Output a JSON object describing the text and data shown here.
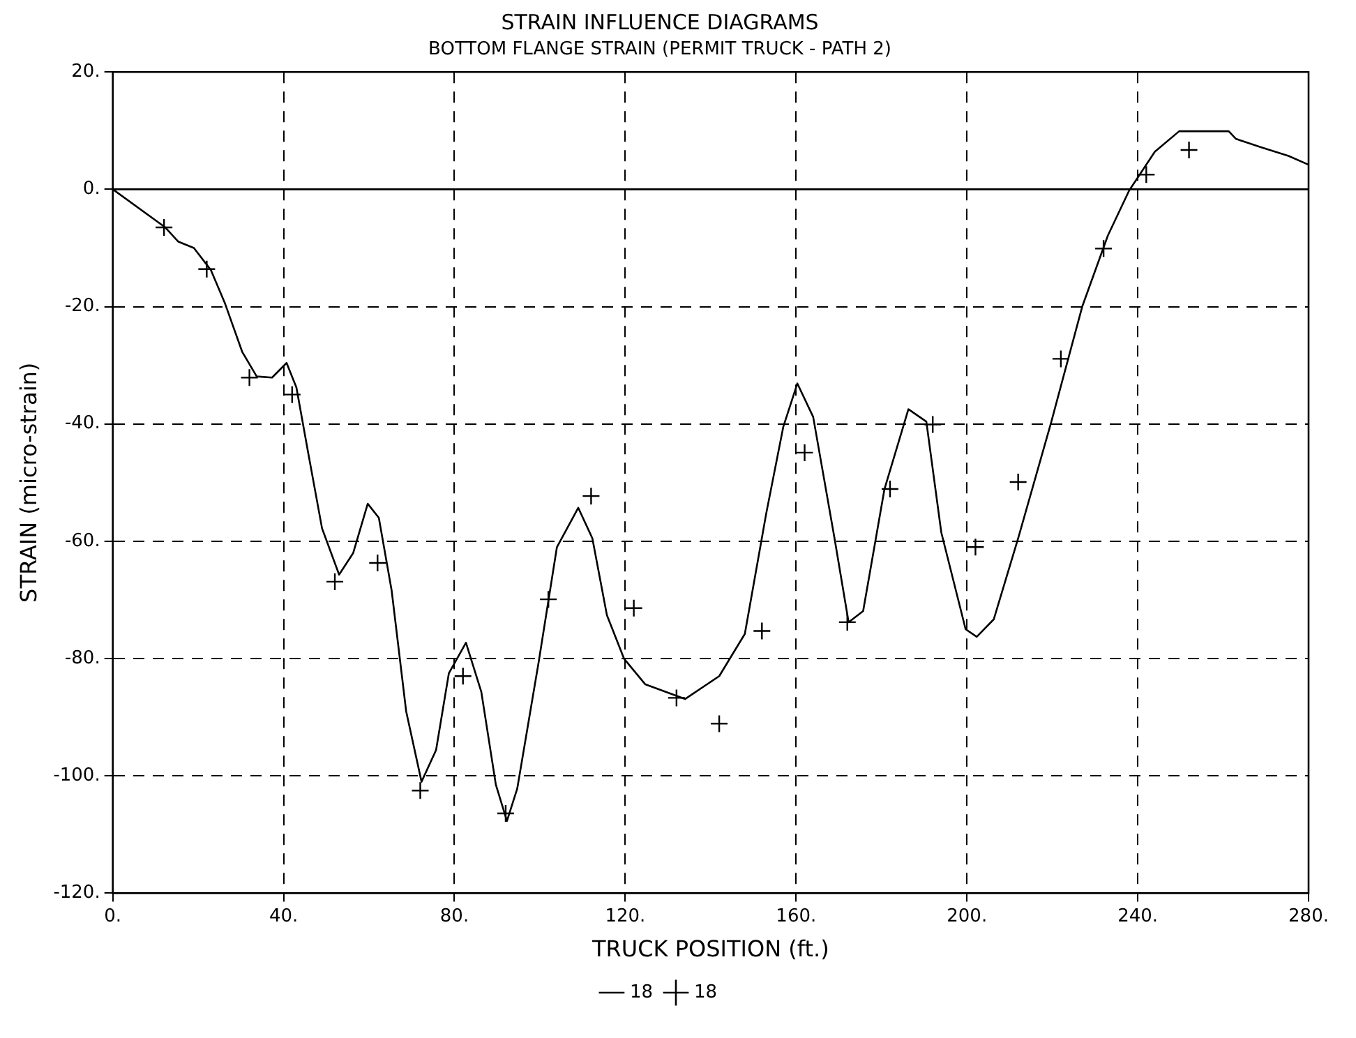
{
  "chart_data": {
    "type": "line",
    "title": "STRAIN INFLUENCE DIAGRAMS",
    "subtitle": "BOTTOM FLANGE STRAIN (PERMIT TRUCK - PATH 2)",
    "xlabel": "TRUCK POSITION (ft.)",
    "ylabel": "STRAIN (micro-strain)",
    "xlim": [
      0,
      280
    ],
    "xticks": [
      {
        "value": 0,
        "label": "0."
      },
      {
        "value": 40,
        "label": "40."
      },
      {
        "value": 80,
        "label": "80."
      },
      {
        "value": 120,
        "label": "120."
      },
      {
        "value": 160,
        "label": "160."
      },
      {
        "value": 200,
        "label": "200."
      },
      {
        "value": 240,
        "label": "240."
      },
      {
        "value": 280,
        "label": "280."
      }
    ],
    "ylim": [
      -120,
      20
    ],
    "yticks": [
      {
        "value": -120,
        "label": "-120."
      },
      {
        "value": -100,
        "label": "-100."
      },
      {
        "value": -80,
        "label": "-80."
      },
      {
        "value": -60,
        "label": "-60."
      },
      {
        "value": -40,
        "label": "-40."
      },
      {
        "value": -20,
        "label": "-20."
      },
      {
        "value": 0,
        "label": "0."
      },
      {
        "value": 20,
        "label": "20."
      }
    ],
    "grid": true,
    "legend": "bottom",
    "ref_lines": [
      {
        "axis": "y",
        "value": 0,
        "color": "#000000",
        "line_style": "solid"
      }
    ],
    "series": [
      {
        "name": "18",
        "color": "#000000",
        "marker": "none",
        "x": [
          0,
          12.3,
          15.3,
          19,
          23,
          26.3,
          30.3,
          33.7,
          37.3,
          40.7,
          43,
          45.7,
          49,
          53,
          56.3,
          59.7,
          62.3,
          65.3,
          68.7,
          72.3,
          75.7,
          78.7,
          82.7,
          86.3,
          89.7,
          92.3,
          94.7,
          99.7,
          104,
          109,
          112.3,
          115.7,
          119.7,
          124.7,
          134,
          142,
          148,
          153,
          157,
          160.3,
          164,
          169,
          172.3,
          175.7,
          180.7,
          186.3,
          190.5,
          194,
          199.7,
          202.3,
          206.3,
          212,
          219.7,
          227,
          233,
          238,
          244,
          249.7,
          261.3,
          263,
          268.7,
          275.3,
          280
        ],
        "values": [
          0,
          -6.5,
          -8.9,
          -10,
          -13.8,
          -19.5,
          -27.7,
          -31.9,
          -32.1,
          -29.6,
          -33.8,
          -44.7,
          -57.8,
          -65.7,
          -62,
          -53.6,
          -56,
          -68.4,
          -89,
          -101,
          -95.6,
          -82.5,
          -77.3,
          -85.7,
          -101.5,
          -107.7,
          -102.2,
          -80.7,
          -61,
          -54.3,
          -59.5,
          -72.6,
          -80,
          -84.4,
          -86.9,
          -83,
          -75.8,
          -55.3,
          -40.5,
          -33.1,
          -38.8,
          -59.5,
          -73.8,
          -71.9,
          -51.1,
          -37.5,
          -39.6,
          -58.5,
          -75,
          -76.3,
          -73.3,
          -59.5,
          -39.8,
          -20,
          -7.9,
          -0.2,
          6.4,
          9.9,
          9.9,
          8.6,
          7.2,
          5.7,
          4.2
        ]
      },
      {
        "name": "18",
        "type": "scatter",
        "color": "#000000",
        "marker": "cross",
        "x": [
          12,
          22,
          32,
          42,
          52,
          62,
          72,
          82,
          92,
          102,
          112,
          122,
          132,
          142,
          152,
          162,
          172,
          182,
          192,
          202,
          212,
          222,
          232,
          242,
          252
        ],
        "values": [
          -6.5,
          -13.6,
          -32.1,
          -35,
          -66.9,
          -63.7,
          -102.5,
          -83,
          -106.4,
          -69.9,
          -52.3,
          -71.4,
          -86.7,
          -91.1,
          -75.3,
          -44.9,
          -73.8,
          -51.1,
          -40.1,
          -61,
          -49.9,
          -28.9,
          -10.1,
          2.5,
          6.7
        ]
      }
    ]
  }
}
